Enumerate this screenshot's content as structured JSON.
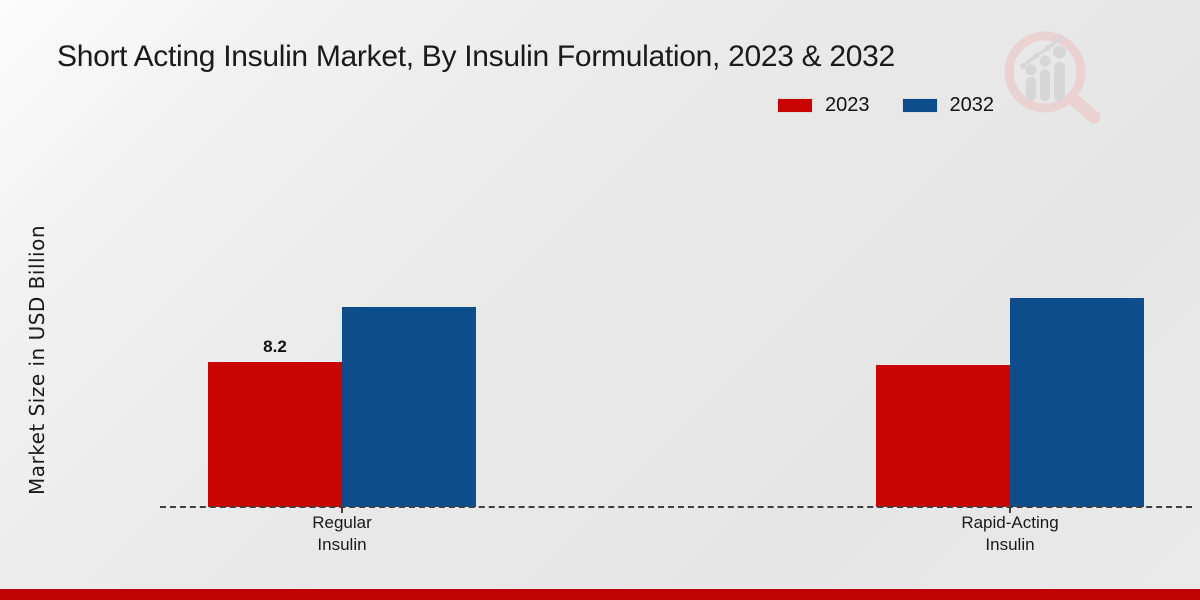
{
  "header": {
    "title": "Short Acting Insulin Market, By Insulin Formulation, 2023 & 2032"
  },
  "legend": {
    "items": [
      {
        "label": "2023",
        "color": "#c90504"
      },
      {
        "label": "2032",
        "color": "#0d4d8c"
      }
    ]
  },
  "watermark": {
    "name": "market-research-magnifier-logo",
    "circle_color": "#eccfcf",
    "bars_color": "#d4d4d4"
  },
  "footer": {
    "bar_color": "#bf0303"
  },
  "chart_data": {
    "type": "bar",
    "title": "Short Acting Insulin Market, By Insulin Formulation, 2023 & 2032",
    "xlabel": "",
    "ylabel": "Market Size in USD Billion",
    "categories": [
      {
        "line1": "Regular",
        "line2": "Insulin"
      },
      {
        "line1": "Rapid-Acting",
        "line2": "Insulin"
      }
    ],
    "series": [
      {
        "name": "2023",
        "color": "#c90504",
        "values": [
          8.2,
          8.0
        ],
        "data_labels": [
          "8.2",
          ""
        ]
      },
      {
        "name": "2032",
        "color": "#0d4d8c",
        "values": [
          11.3,
          11.8
        ],
        "data_labels": [
          "",
          ""
        ]
      }
    ],
    "ylim": [
      0,
      13
    ],
    "grid": false,
    "axis_style": "dashed-baseline-only",
    "legend_position": "top-right",
    "units": "USD Billion"
  }
}
